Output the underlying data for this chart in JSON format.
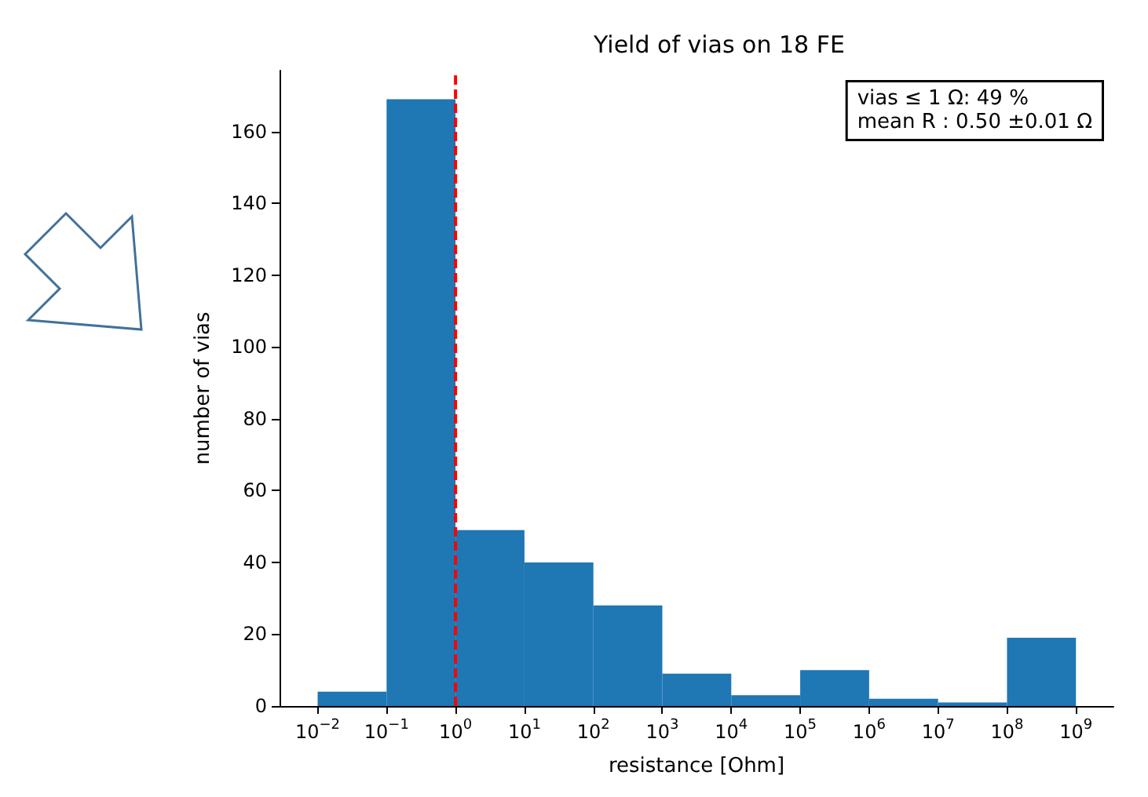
{
  "chart_data": {
    "type": "histogram",
    "title": "Yield of vias on 18 FE",
    "xlabel": "resistance [Ohm]",
    "ylabel": "number of vias",
    "bins": [
      0.01,
      0.1,
      1,
      10,
      100,
      1000,
      10000,
      100000,
      1000000,
      10000000,
      100000000,
      1000000000
    ],
    "values": [
      4,
      169,
      49,
      40,
      28,
      9,
      3,
      10,
      2,
      1,
      19
    ],
    "color": "#1f77b4",
    "log": "x",
    "xlim": [
      0.0028,
      3500000000
    ],
    "xticks": [
      {
        "value": 0.01,
        "label": "10$^{−2}$"
      },
      {
        "value": 0.1,
        "label": "10$^{−1}$"
      },
      {
        "value": 1,
        "label": "10$^{0}$"
      },
      {
        "value": 10,
        "label": "10$^{1}$"
      },
      {
        "value": 100,
        "label": "10$^{2}$"
      },
      {
        "value": 1000,
        "label": "10$^{3}$"
      },
      {
        "value": 10000,
        "label": "10$^{4}$"
      },
      {
        "value": 100000,
        "label": "10$^{5}$"
      },
      {
        "value": 1000000,
        "label": "10$^{6}$"
      },
      {
        "value": 10000000,
        "label": "10$^{7}$"
      },
      {
        "value": 100000000,
        "label": "10$^{8}$"
      },
      {
        "value": 1000000000,
        "label": "10$^{9}$"
      }
    ],
    "ylim": [
      0,
      177
    ],
    "yticks": [
      0,
      20,
      40,
      60,
      80,
      100,
      120,
      140,
      160
    ],
    "grid": false,
    "ref_lines": [
      {
        "axis": "x",
        "value": 1,
        "color": "#ff0000",
        "line_style": "dashed"
      }
    ],
    "annotations": [
      "vias ≤ 1 Ω: 49 %",
      "mean R : 0.50 ±0.01 Ω"
    ]
  }
}
